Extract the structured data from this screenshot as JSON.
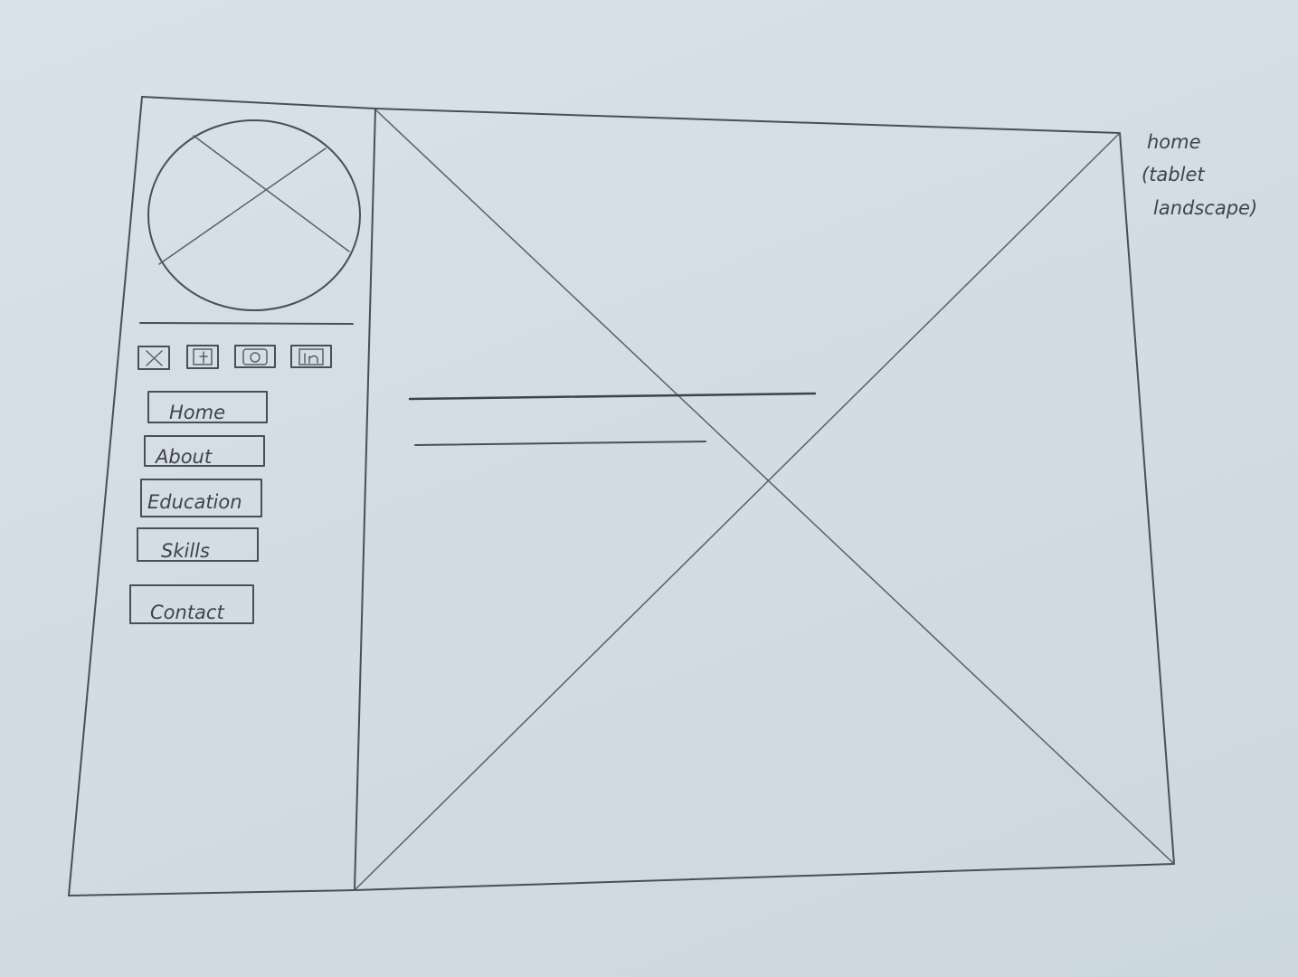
{
  "annotation": {
    "lines": [
      "home",
      "(tablet",
      "landscape)"
    ]
  },
  "sidebar": {
    "avatar_icon": "image-placeholder-icon",
    "social_icons": [
      "x-icon",
      "facebook-icon",
      "instagram-icon",
      "linkedin-icon"
    ],
    "nav_items": [
      {
        "label": "Home"
      },
      {
        "label": "About"
      },
      {
        "label": "Education"
      },
      {
        "label": "Skills"
      },
      {
        "label": "Contact"
      }
    ]
  },
  "main": {
    "hero_icon": "image-placeholder-icon"
  },
  "colors": {
    "paper": "#d5dee5",
    "pencil": "#4a4f55"
  }
}
